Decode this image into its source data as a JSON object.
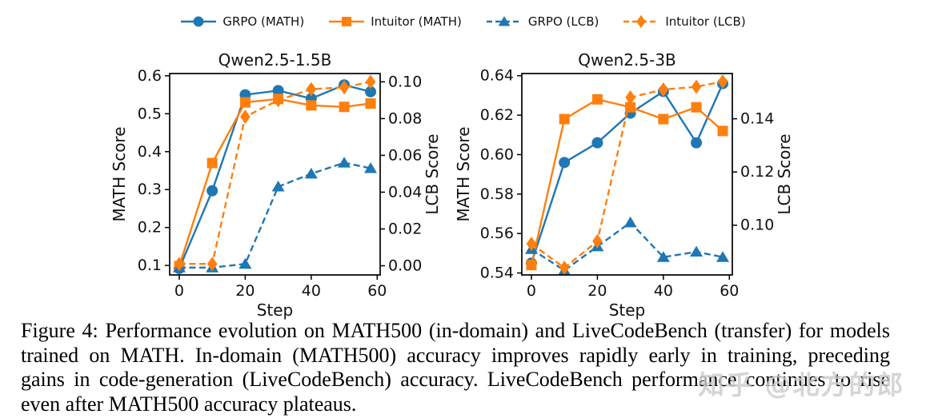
{
  "page": {
    "background": "#ffffff"
  },
  "legend": {
    "items": [
      {
        "label": "GRPO (MATH)",
        "color": "#1f77b4",
        "marker": "circle",
        "line": "solid"
      },
      {
        "label": "Intuitor (MATH)",
        "color": "#ff7f0e",
        "marker": "square",
        "line": "solid"
      },
      {
        "label": "GRPO (LCB)",
        "color": "#1f77b4",
        "marker": "triangle",
        "line": "dashed"
      },
      {
        "label": "Intuitor (LCB)",
        "color": "#ff7f0e",
        "marker": "diamond",
        "line": "dashed"
      }
    ]
  },
  "chart_data": [
    {
      "type": "line",
      "title": "Qwen2.5-1.5B",
      "xlabel": "Step",
      "ylabel_left": "MATH Score",
      "ylabel_right": "LCB Score",
      "x": [
        0,
        10,
        20,
        30,
        40,
        50,
        58
      ],
      "xlim": [
        -2.9,
        60.9
      ],
      "x_ticks": [
        0,
        20,
        40,
        60
      ],
      "x_tick_labels": [
        "0",
        "20",
        "40",
        "60"
      ],
      "left_ylim": [
        0.075,
        0.606
      ],
      "left_ticks": [
        0.1,
        0.2,
        0.3,
        0.4,
        0.5,
        0.6
      ],
      "left_tick_labels": [
        "0.1",
        "0.2",
        "0.3",
        "0.4",
        "0.5",
        "0.6"
      ],
      "right_ylim": [
        -0.005,
        0.1045
      ],
      "right_ticks": [
        0.0,
        0.02,
        0.04,
        0.06,
        0.08,
        0.1
      ],
      "right_tick_labels": [
        "0.00",
        "0.02",
        "0.04",
        "0.06",
        "0.08",
        "0.10"
      ],
      "series": [
        {
          "name": "GRPO (MATH)",
          "axis": "left",
          "color": "#1f77b4",
          "marker": "circle",
          "line": "solid",
          "y": [
            0.092,
            0.297,
            0.55,
            0.561,
            0.54,
            0.576,
            0.558
          ]
        },
        {
          "name": "Intuitor (MATH)",
          "axis": "left",
          "color": "#ff7f0e",
          "marker": "square",
          "line": "solid",
          "y": [
            0.098,
            0.37,
            0.53,
            0.539,
            0.522,
            0.518,
            0.527
          ]
        },
        {
          "name": "GRPO (LCB)",
          "axis": "right",
          "color": "#1f77b4",
          "marker": "triangle",
          "line": "dashed",
          "y": [
            -0.001,
            -0.001,
            0.001,
            0.043,
            0.05,
            0.056,
            0.053
          ]
        },
        {
          "name": "Intuitor (LCB)",
          "axis": "right",
          "color": "#ff7f0e",
          "marker": "diamond",
          "line": "dashed",
          "y": [
            0.001,
            0.001,
            0.081,
            0.09,
            0.096,
            0.097,
            0.1
          ]
        }
      ]
    },
    {
      "type": "line",
      "title": "Qwen2.5-3B",
      "xlabel": "Step",
      "ylabel_left": "MATH Score",
      "ylabel_right": "LCB Score",
      "x": [
        0,
        10,
        20,
        30,
        40,
        50,
        58
      ],
      "xlim": [
        -2.9,
        60.9
      ],
      "x_ticks": [
        0,
        20,
        40,
        60
      ],
      "x_tick_labels": [
        "0",
        "20",
        "40",
        "60"
      ],
      "left_ylim": [
        0.539,
        0.6411
      ],
      "left_ticks": [
        0.54,
        0.56,
        0.58,
        0.6,
        0.62,
        0.64
      ],
      "left_tick_labels": [
        "0.54",
        "0.56",
        "0.58",
        "0.60",
        "0.62",
        "0.64"
      ],
      "right_ylim": [
        0.0813,
        0.157
      ],
      "right_ticks": [
        0.1,
        0.12,
        0.14
      ],
      "right_tick_labels": [
        "0.10",
        "0.12",
        "0.14"
      ],
      "series": [
        {
          "name": "GRPO (MATH)",
          "axis": "left",
          "color": "#1f77b4",
          "marker": "circle",
          "line": "solid",
          "y": [
            0.545,
            0.596,
            0.606,
            0.621,
            0.632,
            0.606,
            0.636
          ]
        },
        {
          "name": "Intuitor (MATH)",
          "axis": "left",
          "color": "#ff7f0e",
          "marker": "square",
          "line": "solid",
          "y": [
            0.544,
            0.618,
            0.628,
            0.624,
            0.618,
            0.624,
            0.612
          ]
        },
        {
          "name": "GRPO (LCB)",
          "axis": "right",
          "color": "#1f77b4",
          "marker": "triangle",
          "line": "dashed",
          "y": [
            0.091,
            0.083,
            0.092,
            0.101,
            0.088,
            0.09,
            0.088
          ]
        },
        {
          "name": "Intuitor (LCB)",
          "axis": "right",
          "color": "#ff7f0e",
          "marker": "diamond",
          "line": "dashed",
          "y": [
            0.093,
            0.084,
            0.094,
            0.148,
            0.151,
            0.152,
            0.154
          ]
        }
      ]
    }
  ],
  "caption": {
    "label": "Figure 4:",
    "lines": [
      "Figure 4: Performance evolution on MATH500 (in-domain) and LiveCodeBench (transfer) for models",
      "trained on MATH. In-domain (MATH500) accuracy improves rapidly early in training, preceding",
      "gains in code-generation (LiveCodeBench) accuracy. LiveCodeBench performance continues to rise",
      "even after MATH500 accuracy plateaus."
    ]
  },
  "watermark": {
    "text": "知乎 @北方的郎",
    "color": "#cccccc"
  }
}
